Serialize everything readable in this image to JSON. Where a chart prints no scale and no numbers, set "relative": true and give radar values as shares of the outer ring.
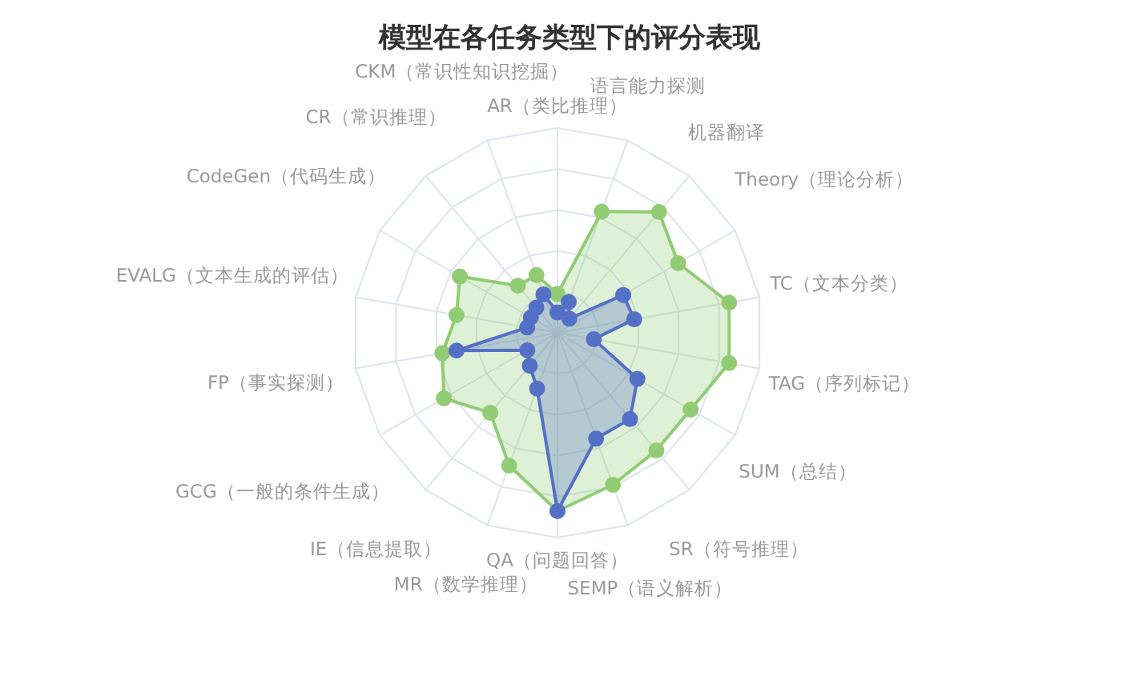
{
  "chart_data": {
    "type": "radar",
    "title": "模型在各任务类型下的评分表现",
    "relative": true,
    "grid": true,
    "marker": "circle",
    "categories": [
      "AR（类比推理）",
      "语言能力探测",
      "机器翻译",
      "Theory（理论分析）",
      "TC（文本分类）",
      "TAG（序列标记）",
      "SUM（总结）",
      "SR（符号推理）",
      "SEMP（语义解析）",
      "QA（问题回答）",
      "MR（数学推理）",
      "IE（信息提取）",
      "GCG（一般的条件生成）",
      "FP（事实探测）",
      "EVALG（文本生成的评估）",
      "CodeGen（代码生成）",
      "CR（常识推理）",
      "CKM（常识性知识挖掘）"
    ],
    "series": [
      {
        "color": "#5470c6",
        "values": [
          0.1,
          0.16,
          0.09,
          0.37,
          0.38,
          0.18,
          0.45,
          0.55,
          0.55,
          0.87,
          0.29,
          0.21,
          0.17,
          0.5,
          0.15,
          0.15,
          0.16,
          0.2
        ]
      },
      {
        "color": "#91cc75",
        "values": [
          0.19,
          0.63,
          0.77,
          0.68,
          0.85,
          0.85,
          0.75,
          0.75,
          0.79,
          0.87,
          0.69,
          0.51,
          0.64,
          0.57,
          0.5,
          0.55,
          0.3,
          0.3
        ]
      }
    ]
  }
}
